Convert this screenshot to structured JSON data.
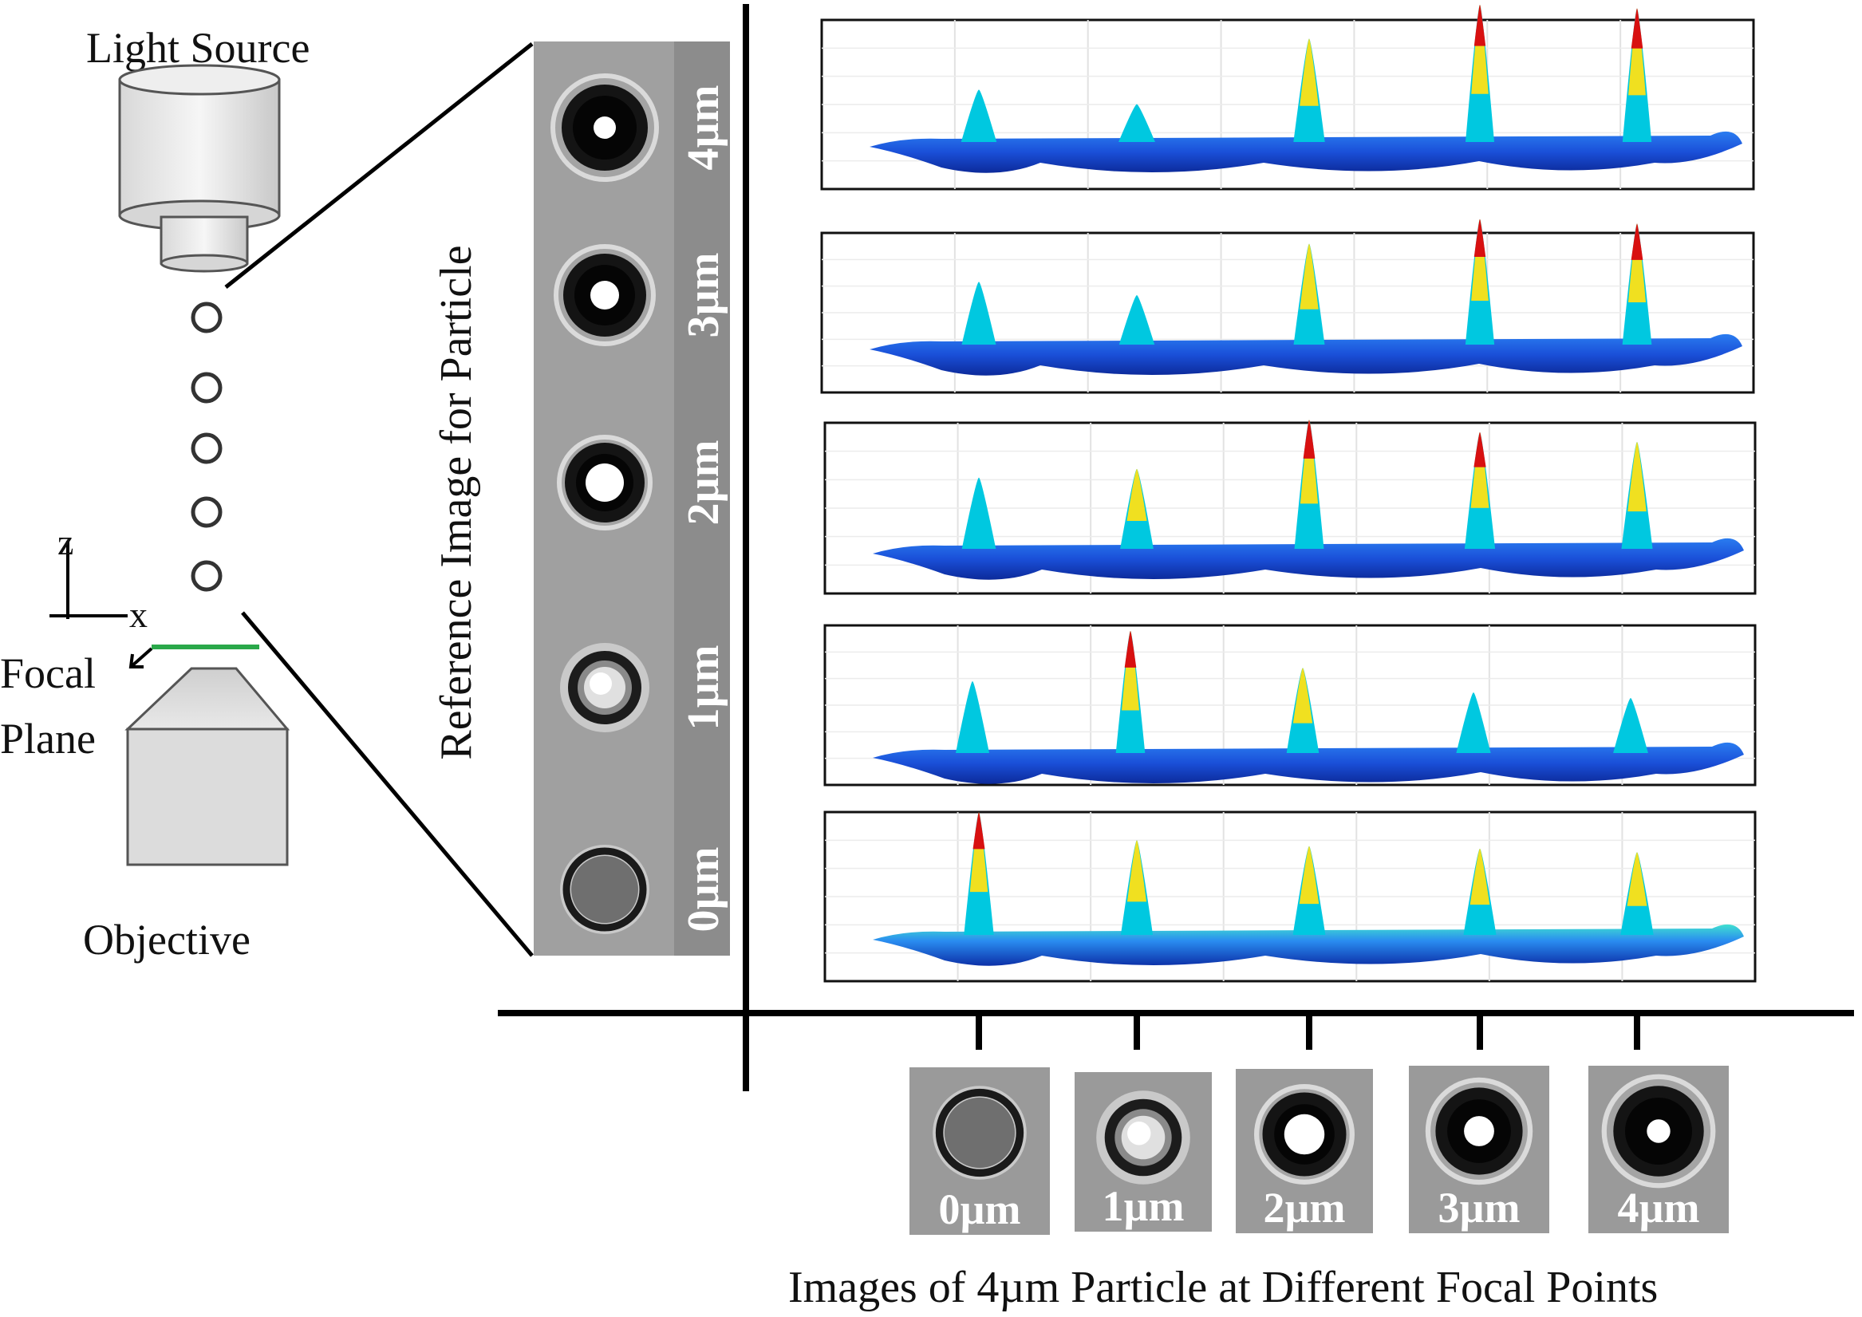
{
  "setup": {
    "light_source_label": "Light Source",
    "objective_label": "Objective",
    "focal_plane_line1": "Focal",
    "focal_plane_line2": "Plane",
    "axis_z": "z",
    "axis_x": "x"
  },
  "reference_strip": {
    "title": "Reference Image for  Particle",
    "depths": [
      "4µm",
      "3µm",
      "2µm",
      "1µm",
      "0µm"
    ]
  },
  "focal_images": {
    "caption": "Images of 4µm Particle at Different Focal Points",
    "labels": [
      "0µm",
      "1µm",
      "2µm",
      "3µm",
      "4µm"
    ]
  },
  "colors": {
    "focal_plane": "#2aa84a",
    "surface_base": "#1a4fd8",
    "peak_low": "#00c8e0",
    "peak_mid": "#f0e020",
    "peak_high": "#d81010"
  },
  "correlation_rows": [
    {
      "reference": "4µm",
      "peak_levels": [
        0.3,
        0.18,
        0.72,
        1.0,
        0.97
      ]
    },
    {
      "reference": "3µm",
      "peak_levels": [
        0.42,
        0.3,
        0.76,
        0.98,
        0.94
      ]
    },
    {
      "reference": "2µm",
      "peak_levels": [
        0.45,
        0.52,
        0.92,
        0.82,
        0.74
      ]
    },
    {
      "reference": "1µm",
      "peak_levels": [
        0.5,
        0.95,
        0.62,
        0.4,
        0.35
      ]
    },
    {
      "reference": "0µm",
      "peak_levels": [
        0.88,
        0.65,
        0.6,
        0.58,
        0.55
      ]
    }
  ]
}
